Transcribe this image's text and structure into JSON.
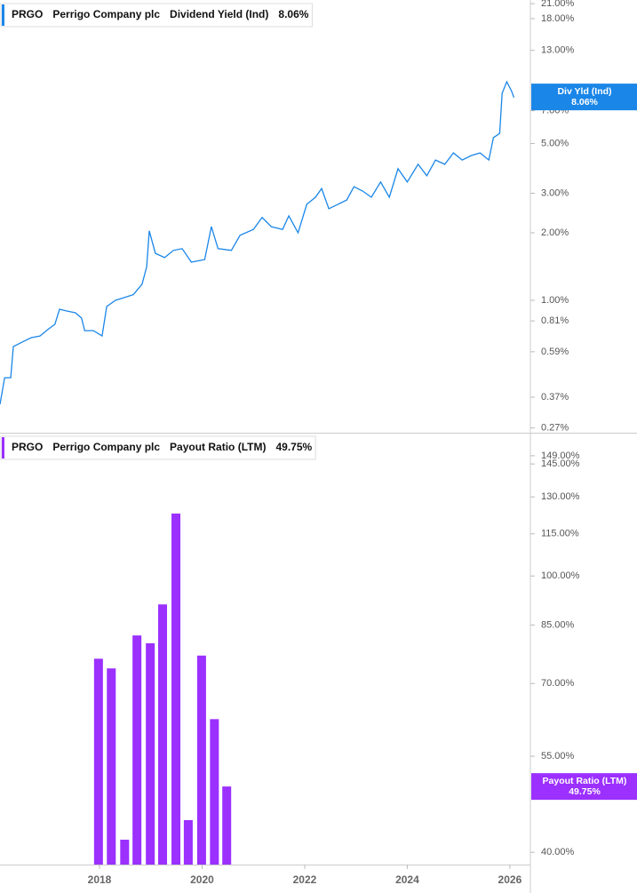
{
  "chart_data": [
    {
      "type": "line",
      "ticker": "PRGO",
      "company": "Perrigo Company plc",
      "series": [
        {
          "name": "Dividend Yield (Ind)",
          "color": "#1a86e8",
          "x": [
            2016.06,
            2016.15,
            2016.27,
            2016.32,
            2016.49,
            2016.67,
            2016.84,
            2017.01,
            2017.13,
            2017.22,
            2017.36,
            2017.53,
            2017.65,
            2017.71,
            2017.88,
            2018.05,
            2018.14,
            2018.31,
            2018.49,
            2018.66,
            2018.83,
            2018.92,
            2018.97,
            2019.09,
            2019.27,
            2019.44,
            2019.61,
            2019.79,
            2020.05,
            2020.18,
            2020.31,
            2020.57,
            2020.74,
            2021.0,
            2021.17,
            2021.35,
            2021.57,
            2021.69,
            2021.87,
            2022.04,
            2022.21,
            2022.33,
            2022.47,
            2022.65,
            2022.82,
            2022.96,
            2023.13,
            2023.3,
            2023.48,
            2023.65,
            2023.82,
            2024.0,
            2024.21,
            2024.38,
            2024.55,
            2024.73,
            2024.9,
            2025.07,
            2025.25,
            2025.42,
            2025.59,
            2025.68,
            2025.8,
            2025.85,
            2025.94,
            2026.03,
            2026.08
          ],
          "values": [
            0.344,
            0.452,
            0.452,
            0.622,
            0.651,
            0.682,
            0.694,
            0.747,
            0.782,
            0.913,
            0.896,
            0.88,
            0.833,
            0.733,
            0.733,
            0.694,
            0.938,
            1.0,
            1.03,
            1.06,
            1.18,
            1.41,
            2.04,
            1.62,
            1.55,
            1.67,
            1.7,
            1.48,
            1.52,
            2.13,
            1.7,
            1.67,
            1.95,
            2.07,
            2.34,
            2.13,
            2.07,
            2.38,
            2.0,
            2.68,
            2.88,
            3.15,
            2.56,
            2.68,
            2.8,
            3.21,
            3.07,
            2.88,
            3.37,
            2.88,
            3.86,
            3.37,
            4.04,
            3.59,
            4.22,
            4.04,
            4.54,
            4.22,
            4.42,
            4.54,
            4.22,
            5.31,
            5.54,
            8.37,
            9.42,
            8.6,
            8.01
          ]
        }
      ],
      "current": {
        "tag": "Div Yld (Ind)",
        "value": 8.06,
        "label": "8.06%"
      },
      "log_scale": true,
      "xlim": [
        2016.06,
        2026.4
      ],
      "ylim": [
        0.257,
        21.8
      ],
      "yticks": [
        {
          "value": 0.27,
          "label": "0.27%"
        },
        {
          "value": 0.37,
          "label": "0.37%"
        },
        {
          "value": 0.59,
          "label": "0.59%"
        },
        {
          "value": 0.81,
          "label": "0.81%"
        },
        {
          "value": 1,
          "label": "1.00%"
        },
        {
          "value": 2,
          "label": "2.00%"
        },
        {
          "value": 3,
          "label": "3.00%"
        },
        {
          "value": 5,
          "label": "5.00%"
        },
        {
          "value": 7,
          "label": "7.00%"
        },
        {
          "value": 13,
          "label": "13.00%"
        },
        {
          "value": 18,
          "label": "18.00%"
        },
        {
          "value": 21,
          "label": "21.00%"
        }
      ]
    },
    {
      "type": "bar",
      "ticker": "PRGO",
      "company": "Perrigo Company plc",
      "series": [
        {
          "name": "Payout Ratio (LTM)",
          "color": "#9b30ff",
          "x": [
            2017.98,
            2018.23,
            2018.49,
            2018.73,
            2018.99,
            2019.23,
            2019.49,
            2019.73,
            2019.99,
            2020.24,
            2020.48
          ],
          "values": [
            76.0,
            73.6,
            41.7,
            82.1,
            80.0,
            91.0,
            123.0,
            44.5,
            76.8,
            62.2,
            49.75
          ]
        }
      ],
      "current": {
        "tag": "Payout Ratio (LTM)",
        "value": 49.75,
        "label": "49.75%"
      },
      "log_scale": true,
      "xlim": [
        2016.06,
        2026.4
      ],
      "xticks": [
        2018,
        2020,
        2022,
        2024,
        2026
      ],
      "ylim": [
        38.4,
        159.4
      ],
      "yticks": [
        {
          "value": 40,
          "label": "40.00%"
        },
        {
          "value": 55,
          "label": "55.00%"
        },
        {
          "value": 70,
          "label": "70.00%"
        },
        {
          "value": 85,
          "label": "85.00%"
        },
        {
          "value": 100,
          "label": "100.00%"
        },
        {
          "value": 115,
          "label": "115.00%"
        },
        {
          "value": 130,
          "label": "130.00%"
        },
        {
          "value": 145,
          "label": "145.00%"
        },
        {
          "value": 149,
          "label": "149.00%"
        }
      ]
    }
  ]
}
